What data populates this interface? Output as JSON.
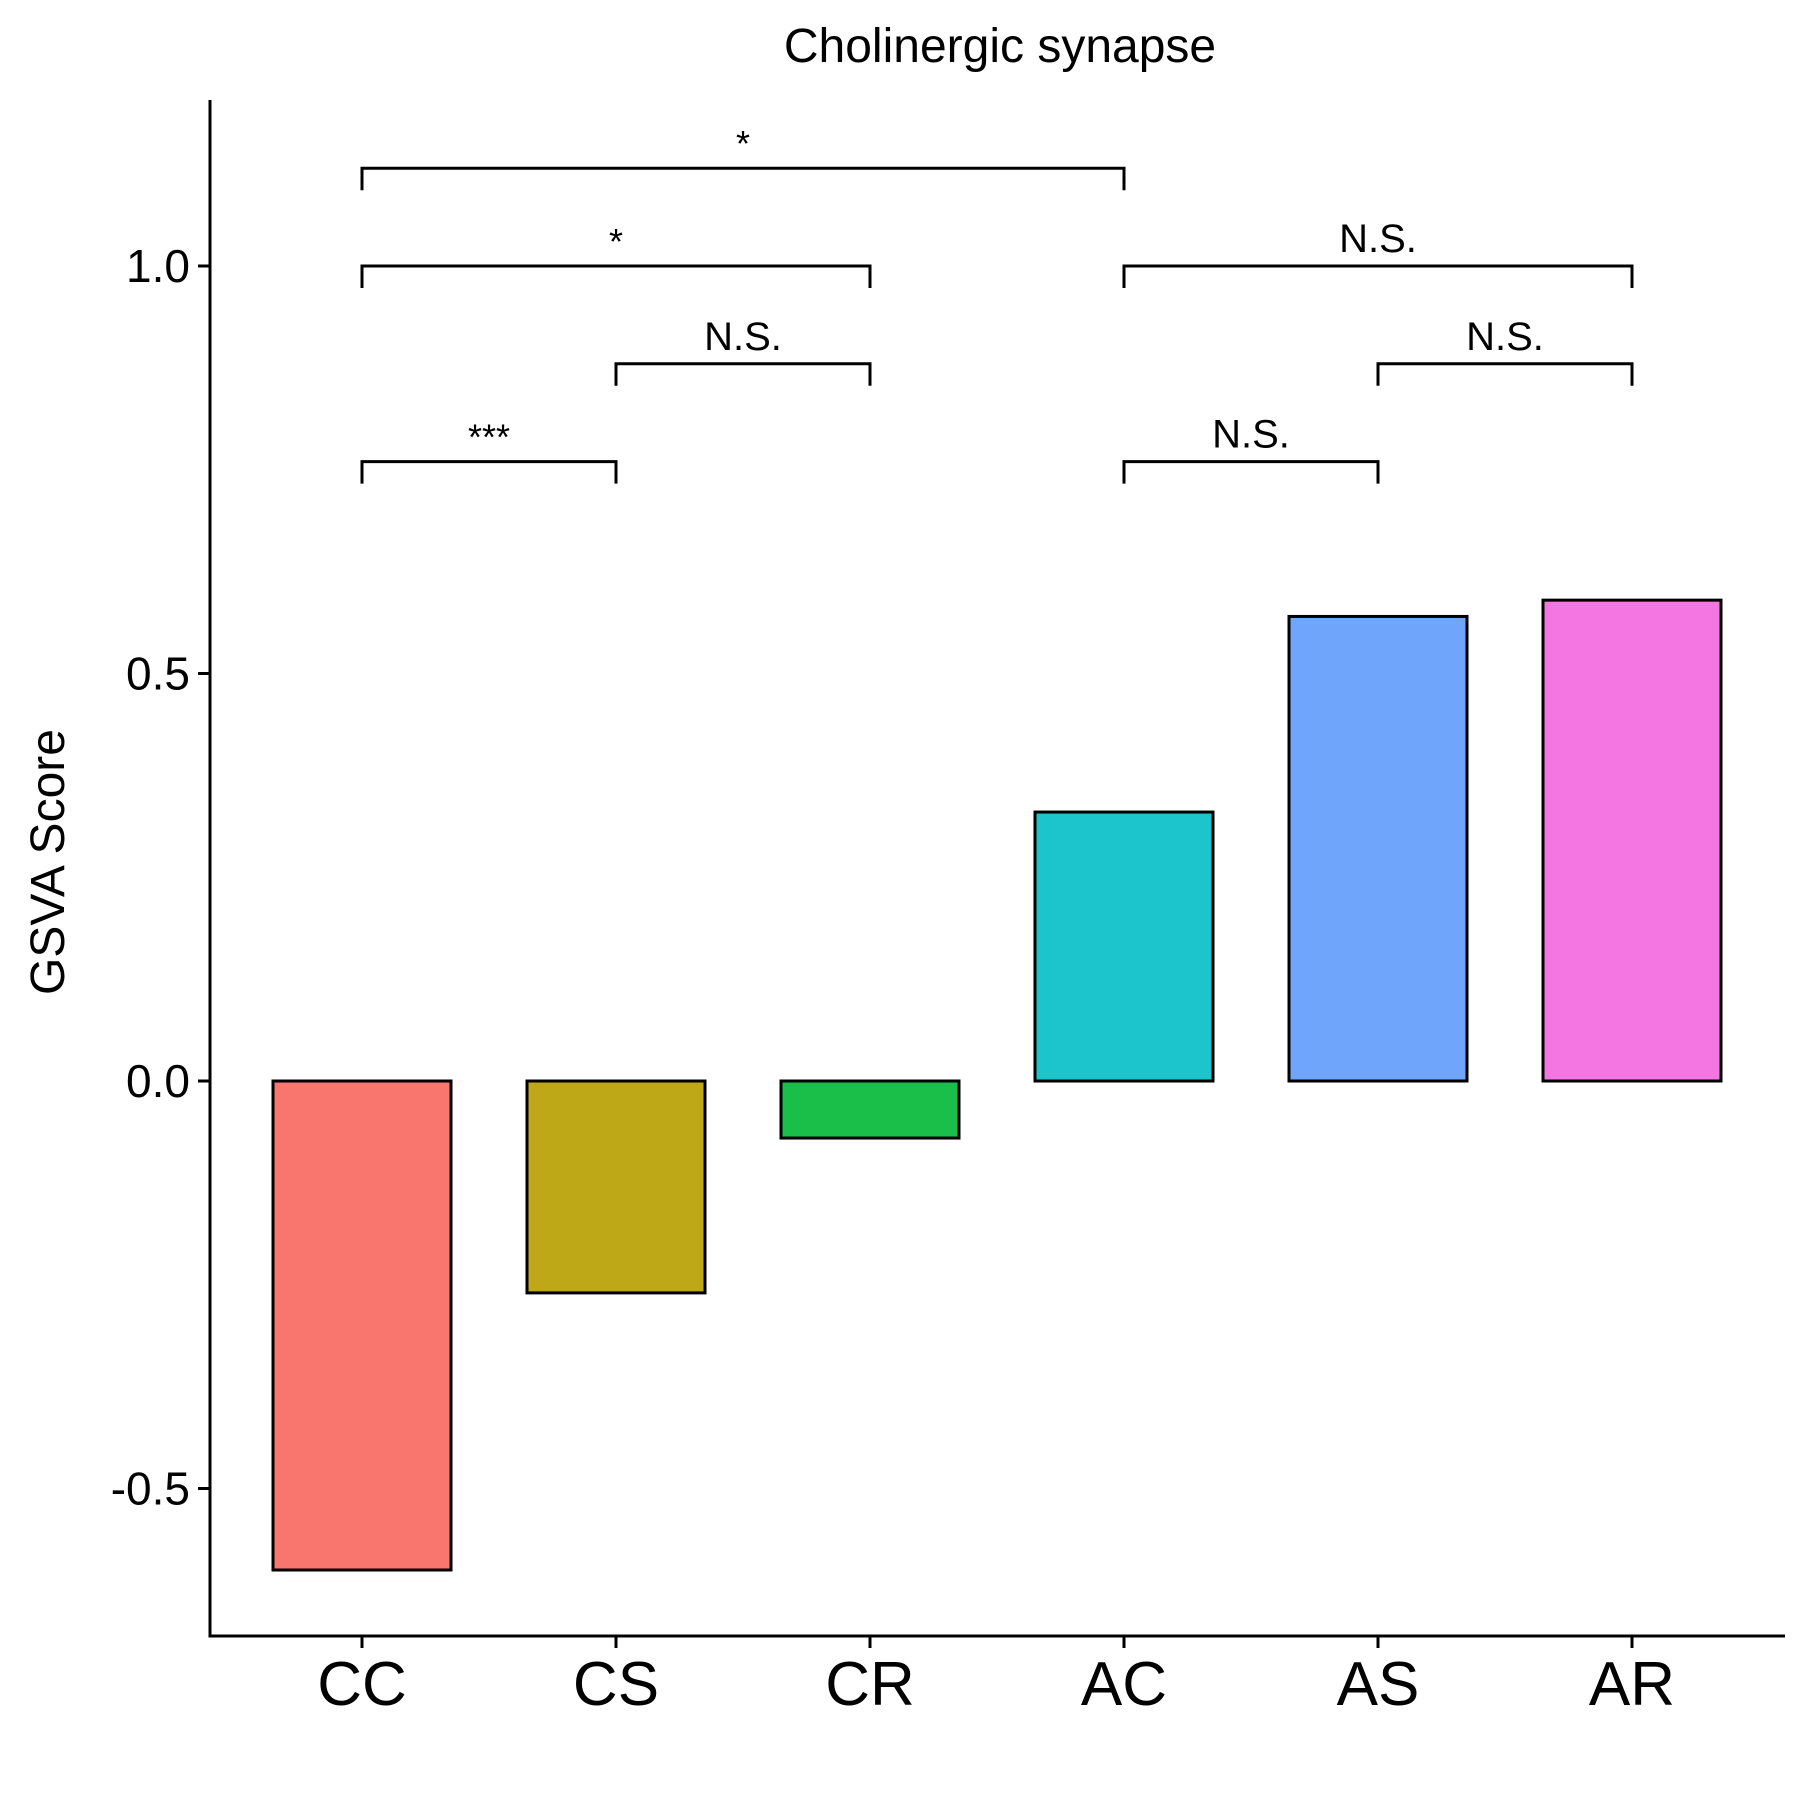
{
  "chart_data": {
    "type": "bar",
    "title": "Cholinergic synapse",
    "xlabel": "",
    "ylabel": "GSVA Score",
    "categories": [
      "CC",
      "CS",
      "CR",
      "AC",
      "AS",
      "AR"
    ],
    "values": [
      -0.6,
      -0.26,
      -0.07,
      0.33,
      0.57,
      0.59
    ],
    "colors": [
      "#F8766D",
      "#BFA818",
      "#1ABF4A",
      "#1CC5CC",
      "#70A5FC",
      "#F476E3"
    ],
    "ylim": [
      -0.68,
      1.22
    ],
    "yticks": [
      -0.5,
      0.0,
      0.5,
      1.0
    ],
    "ytick_labels": [
      "-0.5",
      "0.0",
      "0.5",
      "1.0"
    ],
    "grid": false,
    "legend": "none",
    "comparisons": [
      {
        "from": "CC",
        "to": "CS",
        "level": 0.76,
        "label": "***"
      },
      {
        "from": "CS",
        "to": "CR",
        "level": 0.88,
        "label": "N.S."
      },
      {
        "from": "CC",
        "to": "CR",
        "level": 1.0,
        "label": "*"
      },
      {
        "from": "CC",
        "to": "AC",
        "level": 1.12,
        "label": "*"
      },
      {
        "from": "AC",
        "to": "AS",
        "level": 0.76,
        "label": "N.S."
      },
      {
        "from": "AS",
        "to": "AR",
        "level": 0.88,
        "label": "N.S."
      },
      {
        "from": "AC",
        "to": "AR",
        "level": 1.0,
        "label": "N.S."
      }
    ]
  }
}
